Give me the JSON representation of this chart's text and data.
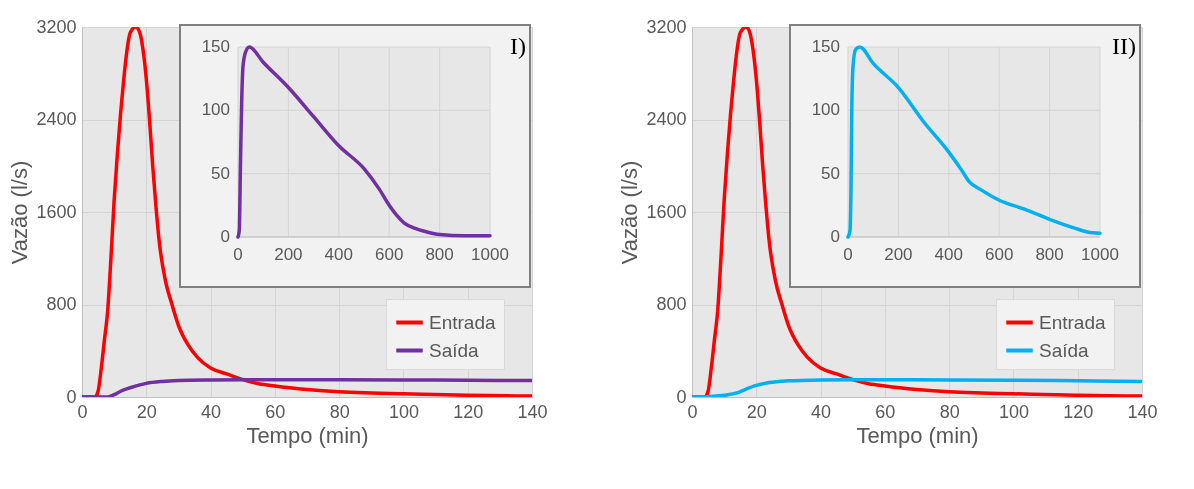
{
  "chart_data": [
    {
      "type": "line",
      "xlabel": "Tempo (min)",
      "ylabel": "Vazão (l/s)",
      "xlim": [
        0,
        140
      ],
      "ylim": [
        0,
        3200
      ],
      "xticks": [
        0,
        20,
        40,
        60,
        80,
        100,
        120,
        140
      ],
      "yticks": [
        0,
        800,
        1600,
        2400,
        3200
      ],
      "grid": true,
      "legend": "bottom right",
      "series": [
        {
          "name": "Entrada",
          "color": "#ff0000",
          "x": [
            0,
            4,
            5,
            6,
            7,
            8,
            9,
            10,
            11,
            12,
            13,
            14,
            15,
            16.7,
            18,
            19,
            20,
            21,
            22,
            23,
            24,
            26,
            28,
            30,
            33,
            36,
            40,
            45,
            50,
            55,
            60,
            70,
            80,
            90,
            100,
            120,
            140
          ],
          "values": [
            0,
            0,
            50,
            250,
            500,
            750,
            1200,
            1700,
            2100,
            2450,
            2750,
            3000,
            3150,
            3200,
            3150,
            3000,
            2750,
            2400,
            2000,
            1650,
            1350,
            1000,
            800,
            620,
            450,
            340,
            250,
            200,
            150,
            115,
            95,
            65,
            45,
            35,
            28,
            15,
            8
          ]
        },
        {
          "name": "Saída",
          "color": "#7030a0",
          "x": [
            0,
            8,
            10,
            12,
            15,
            18,
            20,
            25,
            30,
            40,
            50,
            60,
            80,
            100,
            120,
            140
          ],
          "values": [
            0,
            0,
            20,
            50,
            80,
            105,
            118,
            135,
            143,
            148,
            150,
            150,
            149,
            147,
            145,
            142
          ]
        }
      ]
    },
    {
      "type": "line",
      "xlim": [
        0,
        1000
      ],
      "ylim": [
        0,
        150
      ],
      "xticks": [
        0,
        200,
        400,
        600,
        800,
        1000
      ],
      "yticks": [
        0,
        50,
        100,
        150
      ],
      "grid": true,
      "annotations": [
        "I)"
      ],
      "series": [
        {
          "color": "#7030a0",
          "x": [
            0,
            5,
            10,
            15,
            20,
            30,
            45,
            100,
            200,
            300,
            400,
            500,
            560,
            600,
            630,
            660,
            700,
            750,
            800,
            900,
            1000
          ],
          "values": [
            0,
            5,
            60,
            110,
            135,
            146,
            150,
            138,
            118,
            95,
            72,
            54,
            38,
            25,
            17,
            11,
            7,
            4,
            2,
            1,
            1
          ]
        }
      ]
    },
    {
      "type": "line",
      "xlabel": "Tempo (min)",
      "ylabel": "Vazão (l/s)",
      "xlim": [
        0,
        140
      ],
      "ylim": [
        0,
        3200
      ],
      "xticks": [
        0,
        20,
        40,
        60,
        80,
        100,
        120,
        140
      ],
      "yticks": [
        0,
        800,
        1600,
        2400,
        3200
      ],
      "grid": true,
      "legend": "bottom right",
      "series": [
        {
          "name": "Entrada",
          "color": "#ff0000",
          "x": [
            0,
            4,
            5,
            6,
            7,
            8,
            9,
            10,
            11,
            12,
            13,
            14,
            15,
            16.9,
            18,
            19,
            20,
            21,
            22,
            23,
            24,
            26,
            28,
            30,
            33,
            36,
            40,
            45,
            50,
            55,
            60,
            70,
            80,
            90,
            100,
            120,
            140
          ],
          "values": [
            0,
            0,
            50,
            250,
            500,
            750,
            1200,
            1700,
            2100,
            2450,
            2750,
            3000,
            3150,
            3200,
            3150,
            3000,
            2750,
            2400,
            2000,
            1650,
            1350,
            1000,
            800,
            620,
            450,
            340,
            250,
            200,
            150,
            115,
            95,
            65,
            45,
            35,
            28,
            15,
            8
          ]
        },
        {
          "name": "Saída",
          "color": "#00b0f0",
          "x": [
            0,
            5,
            10,
            14,
            17,
            20,
            24,
            30,
            40,
            50,
            60,
            80,
            100,
            120,
            140
          ],
          "values": [
            0,
            3,
            15,
            35,
            70,
            100,
            125,
            140,
            148,
            150,
            150,
            148,
            145,
            140,
            133
          ]
        }
      ]
    },
    {
      "type": "line",
      "xlim": [
        0,
        1000
      ],
      "ylim": [
        0,
        150
      ],
      "xticks": [
        0,
        200,
        400,
        600,
        800,
        1000
      ],
      "yticks": [
        0,
        50,
        100,
        150
      ],
      "grid": true,
      "annotations": [
        "II)"
      ],
      "series": [
        {
          "color": "#00b0f0",
          "x": [
            0,
            8,
            12,
            15,
            20,
            30,
            47,
            100,
            200,
            300,
            400,
            450,
            480,
            530,
            600,
            700,
            800,
            900,
            950,
            1000
          ],
          "values": [
            0,
            5,
            40,
            100,
            135,
            148,
            150,
            137,
            118,
            91,
            67,
            53,
            44,
            37,
            29,
            22,
            14,
            7,
            4,
            3
          ]
        }
      ]
    }
  ]
}
